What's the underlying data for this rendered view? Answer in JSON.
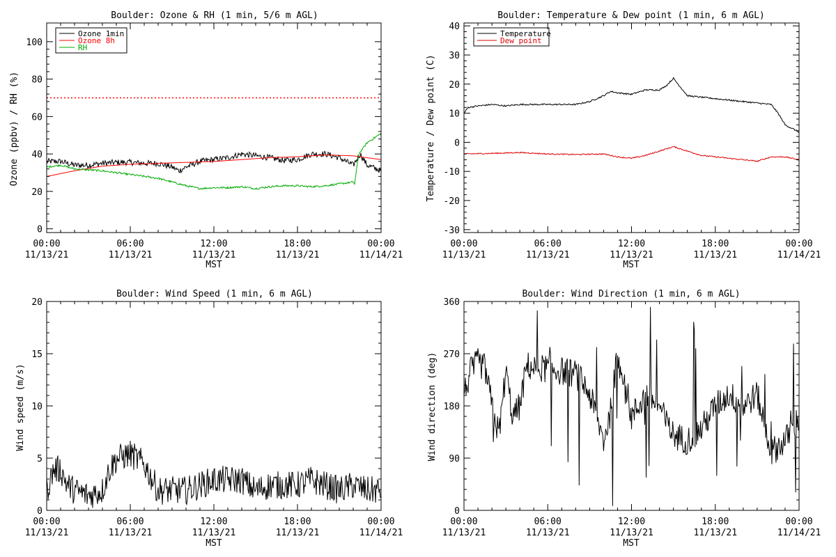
{
  "chart_data": [
    {
      "type": "line",
      "title": "Boulder: Ozone & RH (1 min, 5/6 m AGL)",
      "xlabel": "MST",
      "ylabel": "Ozone (ppbv) / RH (%)",
      "x_range_hours": [
        0,
        24
      ],
      "x_ticks": [
        {
          "hour": 0,
          "time": "00:00",
          "date": "11/13/21"
        },
        {
          "hour": 6,
          "time": "06:00",
          "date": "11/13/21"
        },
        {
          "hour": 12,
          "time": "12:00",
          "date": "11/13/21"
        },
        {
          "hour": 18,
          "time": "18:00",
          "date": "11/13/21"
        },
        {
          "hour": 24,
          "time": "00:00",
          "date": "11/14/21"
        }
      ],
      "ylim": [
        -2,
        110
      ],
      "y_ticks": [
        "0",
        "20",
        "40",
        "60",
        "80",
        "100"
      ],
      "y_tick_values": [
        0,
        20,
        40,
        60,
        80,
        100
      ],
      "grid": false,
      "legend_position": "top-left",
      "reference_lines": [
        {
          "y": 70,
          "color": "#ff0000",
          "style": "dotted"
        }
      ],
      "series": [
        {
          "name": "Ozone 1min",
          "color": "#000000",
          "noise": 1.6,
          "points": [
            [
              0,
              36
            ],
            [
              1,
              36
            ],
            [
              2,
              34
            ],
            [
              3,
              34
            ],
            [
              4,
              35
            ],
            [
              5,
              35.5
            ],
            [
              6,
              35.5
            ],
            [
              7,
              35
            ],
            [
              8,
              35
            ],
            [
              9,
              33
            ],
            [
              9.5,
              31
            ],
            [
              10,
              33
            ],
            [
              11,
              36
            ],
            [
              12,
              37
            ],
            [
              13,
              38
            ],
            [
              14,
              40
            ],
            [
              15,
              39
            ],
            [
              16,
              38
            ],
            [
              17,
              36.5
            ],
            [
              18,
              37
            ],
            [
              19,
              40
            ],
            [
              20,
              40
            ],
            [
              21,
              38
            ],
            [
              22,
              34
            ],
            [
              22.5,
              40
            ],
            [
              23,
              34
            ],
            [
              24,
              31
            ]
          ]
        },
        {
          "name": "Ozone 8h",
          "color": "#ff0000",
          "noise": 0,
          "points": [
            [
              0,
              28
            ],
            [
              2,
              31
            ],
            [
              4,
              33.5
            ],
            [
              6,
              34.5
            ],
            [
              8,
              35
            ],
            [
              10,
              35.5
            ],
            [
              12,
              36
            ],
            [
              14,
              37
            ],
            [
              16,
              38
            ],
            [
              18,
              38.5
            ],
            [
              20,
              39.5
            ],
            [
              22,
              39
            ],
            [
              24,
              37
            ]
          ]
        },
        {
          "name": "RH",
          "color": "#00aa00",
          "noise": 0.5,
          "points": [
            [
              0,
              33
            ],
            [
              1,
              34
            ],
            [
              2,
              32
            ],
            [
              3,
              31.5
            ],
            [
              4,
              31
            ],
            [
              5,
              30
            ],
            [
              6,
              29
            ],
            [
              7,
              28
            ],
            [
              8,
              27
            ],
            [
              9,
              25
            ],
            [
              10,
              23
            ],
            [
              11,
              21.5
            ],
            [
              12,
              22
            ],
            [
              13,
              22
            ],
            [
              14,
              22.5
            ],
            [
              15,
              21.5
            ],
            [
              16,
              22.5
            ],
            [
              17,
              23
            ],
            [
              18,
              23
            ],
            [
              19,
              22.5
            ],
            [
              20,
              23
            ],
            [
              21,
              24
            ],
            [
              22,
              25
            ],
            [
              22.1,
              24
            ],
            [
              22.4,
              40
            ],
            [
              23,
              46
            ],
            [
              24,
              51
            ]
          ]
        }
      ]
    },
    {
      "type": "line",
      "title": "Boulder: Temperature & Dew point (1 min, 6 m AGL)",
      "xlabel": "MST",
      "ylabel": "Temperature / Dew point (C)",
      "x_range_hours": [
        0,
        24
      ],
      "x_ticks": [
        {
          "hour": 0,
          "time": "00:00",
          "date": "11/13/21"
        },
        {
          "hour": 6,
          "time": "06:00",
          "date": "11/13/21"
        },
        {
          "hour": 12,
          "time": "12:00",
          "date": "11/13/21"
        },
        {
          "hour": 18,
          "time": "18:00",
          "date": "11/13/21"
        },
        {
          "hour": 24,
          "time": "00:00",
          "date": "11/14/21"
        }
      ],
      "ylim": [
        -31,
        41
      ],
      "y_ticks": [
        "-30",
        "-20",
        "-10",
        "0",
        "10",
        "20",
        "30",
        "40"
      ],
      "y_tick_values": [
        -30,
        -20,
        -10,
        0,
        10,
        20,
        30,
        40
      ],
      "grid": false,
      "legend_position": "top-left",
      "series": [
        {
          "name": "Temperature",
          "color": "#000000",
          "noise": 0.25,
          "points": [
            [
              0,
              10
            ],
            [
              0.3,
              12
            ],
            [
              1,
              12.5
            ],
            [
              2,
              13
            ],
            [
              3,
              12.5
            ],
            [
              4,
              13
            ],
            [
              5,
              13
            ],
            [
              6,
              13
            ],
            [
              7,
              13
            ],
            [
              8,
              13
            ],
            [
              9,
              14
            ],
            [
              10,
              16
            ],
            [
              10.5,
              17.5
            ],
            [
              11,
              17
            ],
            [
              12,
              16.5
            ],
            [
              13,
              18
            ],
            [
              14,
              18
            ],
            [
              14.5,
              19.5
            ],
            [
              15,
              22
            ],
            [
              15.5,
              19
            ],
            [
              16,
              16
            ],
            [
              17,
              15.5
            ],
            [
              18,
              15
            ],
            [
              19,
              14.5
            ],
            [
              20,
              14
            ],
            [
              21,
              13.5
            ],
            [
              22,
              13
            ],
            [
              22.5,
              10
            ],
            [
              23,
              6
            ],
            [
              24,
              3.5
            ]
          ]
        },
        {
          "name": "Dew point",
          "color": "#dd0000",
          "noise": 0.2,
          "points": [
            [
              0,
              -4
            ],
            [
              2,
              -3.8
            ],
            [
              4,
              -3.5
            ],
            [
              6,
              -4
            ],
            [
              8,
              -4.2
            ],
            [
              10,
              -4
            ],
            [
              11,
              -5
            ],
            [
              12,
              -5.5
            ],
            [
              13,
              -4.5
            ],
            [
              14,
              -3
            ],
            [
              15,
              -1.5
            ],
            [
              16,
              -3
            ],
            [
              17,
              -4.5
            ],
            [
              18,
              -5
            ],
            [
              20,
              -6
            ],
            [
              21,
              -6.5
            ],
            [
              22,
              -5
            ],
            [
              23,
              -5
            ],
            [
              24,
              -6
            ]
          ]
        }
      ]
    },
    {
      "type": "line",
      "title": "Boulder: Wind Speed (1 min, 6 m AGL)",
      "xlabel": "MST",
      "ylabel": "Wind speed (m/s)",
      "x_range_hours": [
        0,
        24
      ],
      "x_ticks": [
        {
          "hour": 0,
          "time": "00:00",
          "date": "11/13/21"
        },
        {
          "hour": 6,
          "time": "06:00",
          "date": "11/13/21"
        },
        {
          "hour": 12,
          "time": "12:00",
          "date": "11/13/21"
        },
        {
          "hour": 18,
          "time": "18:00",
          "date": "11/13/21"
        },
        {
          "hour": 24,
          "time": "00:00",
          "date": "11/14/21"
        }
      ],
      "ylim": [
        0,
        20
      ],
      "y_ticks": [
        "0",
        "5",
        "10",
        "15",
        "20"
      ],
      "y_tick_values": [
        0,
        5,
        10,
        15,
        20
      ],
      "grid": false,
      "series": [
        {
          "color": "#000000",
          "noise": 1.7,
          "points": [
            [
              0,
              1.5
            ],
            [
              0.5,
              3.5
            ],
            [
              1,
              3.5
            ],
            [
              1.5,
              2
            ],
            [
              2,
              1.5
            ],
            [
              3,
              1
            ],
            [
              4,
              1.5
            ],
            [
              4.5,
              3.5
            ],
            [
              5,
              4.5
            ],
            [
              6,
              5
            ],
            [
              7,
              4
            ],
            [
              8,
              1.5
            ],
            [
              9,
              1.5
            ],
            [
              10,
              1.5
            ],
            [
              11,
              2
            ],
            [
              12,
              2.5
            ],
            [
              13,
              2.5
            ],
            [
              14,
              2.5
            ],
            [
              15,
              1.5
            ],
            [
              16,
              2
            ],
            [
              17,
              2
            ],
            [
              18,
              2
            ],
            [
              19,
              2.5
            ],
            [
              20,
              2
            ],
            [
              21,
              1.5
            ],
            [
              22,
              2
            ],
            [
              23,
              1.5
            ],
            [
              24,
              1.5
            ]
          ]
        }
      ]
    },
    {
      "type": "line",
      "title": "Boulder: Wind Direction (1 min, 6 m AGL)",
      "xlabel": "MST",
      "ylabel": "Wind direction (deg)",
      "x_range_hours": [
        0,
        24
      ],
      "x_ticks": [
        {
          "hour": 0,
          "time": "00:00",
          "date": "11/13/21"
        },
        {
          "hour": 6,
          "time": "06:00",
          "date": "11/13/21"
        },
        {
          "hour": 12,
          "time": "12:00",
          "date": "11/13/21"
        },
        {
          "hour": 18,
          "time": "18:00",
          "date": "11/13/21"
        },
        {
          "hour": 24,
          "time": "00:00",
          "date": "11/14/21"
        }
      ],
      "ylim": [
        0,
        360
      ],
      "y_ticks": [
        "0",
        "90",
        "180",
        "270",
        "360"
      ],
      "y_tick_values": [
        0,
        90,
        180,
        270,
        360
      ],
      "grid": false,
      "series": [
        {
          "color": "#000000",
          "noise": 25,
          "points": [
            [
              0,
              200
            ],
            [
              0.5,
              240
            ],
            [
              1,
              255
            ],
            [
              1.5,
              245
            ],
            [
              2,
              180
            ],
            [
              2.5,
              130
            ],
            [
              3,
              240
            ],
            [
              3.5,
              160
            ],
            [
              4,
              180
            ],
            [
              4.5,
              250
            ],
            [
              5,
              245
            ],
            [
              6,
              245
            ],
            [
              7,
              240
            ],
            [
              8,
              235
            ],
            [
              8.5,
              220
            ],
            [
              9,
              200
            ],
            [
              9.5,
              160
            ],
            [
              10,
              120
            ],
            [
              10.5,
              170
            ],
            [
              11,
              270
            ],
            [
              11.5,
              230
            ],
            [
              12,
              160
            ],
            [
              13,
              200
            ],
            [
              14,
              180
            ],
            [
              14.5,
              150
            ],
            [
              15,
              130
            ],
            [
              16,
              120
            ],
            [
              17,
              140
            ],
            [
              18,
              180
            ],
            [
              19,
              200
            ],
            [
              20,
              180
            ],
            [
              21,
              200
            ],
            [
              22,
              100
            ],
            [
              22.5,
              110
            ],
            [
              23,
              120
            ],
            [
              24,
              160
            ]
          ]
        }
      ]
    }
  ]
}
